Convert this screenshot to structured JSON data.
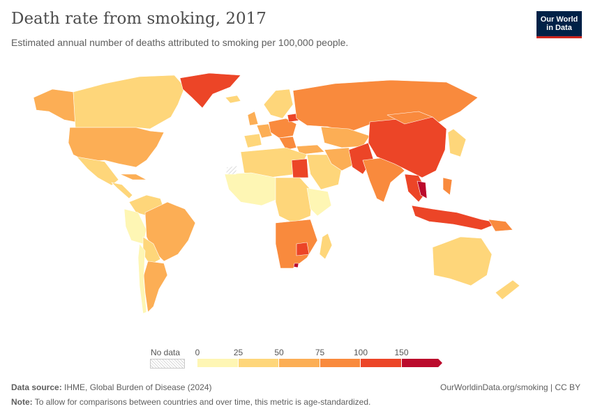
{
  "header": {
    "title": "Death rate from smoking, 2017",
    "subtitle": "Estimated annual number of deaths attributed to smoking per 100,000 people."
  },
  "logo": {
    "line1": "Our World",
    "line2": "in Data",
    "bg_color": "#002147",
    "accent_color": "#ce261e"
  },
  "legend": {
    "no_data_label": "No data",
    "ticks": [
      "0",
      "25",
      "50",
      "75",
      "100",
      "150"
    ],
    "bins": [
      {
        "from": 0,
        "to": 25,
        "color": "#fef6b4"
      },
      {
        "from": 25,
        "to": 50,
        "color": "#fed67a"
      },
      {
        "from": 50,
        "to": 75,
        "color": "#fcae55"
      },
      {
        "from": 75,
        "to": 100,
        "color": "#f98a3d"
      },
      {
        "from": 100,
        "to": 150,
        "color": "#ec4527"
      },
      {
        "from": 150,
        "to": null,
        "color": "#bb0a2c"
      }
    ]
  },
  "footer": {
    "source_label": "Data source:",
    "source_text": "IHME, Global Burden of Disease (2024)",
    "note_label": "Note:",
    "note_text": "To allow for comparisons between countries and over time, this metric is age-standardized.",
    "credit": "OurWorldinData.org/smoking | CC BY"
  }
}
